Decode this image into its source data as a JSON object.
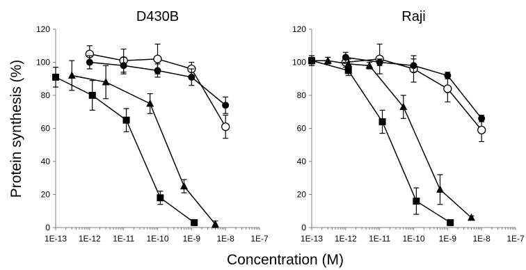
{
  "figure": {
    "ylabel": "Protein synthesis (%)",
    "xlabel": "Concentration (M)"
  },
  "chart_data": [
    {
      "type": "scatter",
      "title": "D430B",
      "xlabel": "Concentration (M)",
      "ylabel": "Protein synthesis (%)",
      "xscale": "log",
      "xlim": [
        1e-13,
        1e-07
      ],
      "ylim": [
        0,
        120
      ],
      "xtick_labels": [
        "1E-13",
        "1E-12",
        "1E-11",
        "1E-10",
        "1E-9",
        "1E-8",
        "1E-7"
      ],
      "ytick_labels": [
        "0",
        "20",
        "40",
        "60",
        "80",
        "100",
        "120"
      ],
      "grid": false,
      "series": [
        {
          "marker": "circle-open",
          "x": [
            1e-12,
            1e-11,
            1e-10,
            1e-09,
            1e-08
          ],
          "y": [
            105,
            101,
            102,
            96,
            61
          ],
          "err": [
            5,
            7,
            9,
            4,
            7
          ]
        },
        {
          "marker": "circle-filled",
          "x": [
            1e-12,
            1e-11,
            1e-10,
            1e-09,
            1e-08
          ],
          "y": [
            100,
            98,
            95,
            91,
            74
          ],
          "err": [
            4,
            5,
            4,
            5,
            5
          ]
        },
        {
          "marker": "triangle",
          "x": [
            3e-13,
            3e-12,
            6e-11,
            6e-10,
            5e-09
          ],
          "y": [
            92,
            88,
            75,
            25,
            2
          ],
          "err": [
            9,
            10,
            6,
            4,
            2
          ]
        },
        {
          "marker": "square",
          "x": [
            1e-13,
            1.2e-12,
            1.2e-11,
            1.2e-10,
            1.2e-09
          ],
          "y": [
            91,
            80,
            65,
            18,
            3
          ],
          "err": [
            6,
            9,
            7,
            4,
            1
          ]
        }
      ]
    },
    {
      "type": "scatter",
      "title": "Raji",
      "xlabel": "Concentration (M)",
      "ylabel": "Protein synthesis (%)",
      "xscale": "log",
      "xlim": [
        1e-13,
        1e-07
      ],
      "ylim": [
        0,
        120
      ],
      "xtick_labels": [
        "1E-13",
        "1E-12",
        "1E-11",
        "1E-10",
        "1E-9",
        "1E-8",
        "1E-7"
      ],
      "ytick_labels": [
        "0",
        "20",
        "40",
        "60",
        "80",
        "100",
        "120"
      ],
      "grid": false,
      "series": [
        {
          "marker": "circle-open",
          "x": [
            1e-12,
            1e-11,
            1e-10,
            1e-09,
            1e-08
          ],
          "y": [
            100,
            102,
            96,
            84,
            59
          ],
          "err": [
            3,
            9,
            8,
            8,
            7
          ]
        },
        {
          "marker": "circle-filled",
          "x": [
            1e-12,
            1e-11,
            1e-10,
            1e-09,
            1e-08
          ],
          "y": [
            103,
            100,
            98,
            92,
            66
          ],
          "err": [
            3,
            2,
            4,
            2,
            2
          ]
        },
        {
          "marker": "triangle",
          "x": [
            1e-13,
            3e-13,
            1.2e-12,
            5e-12,
            5e-11,
            6e-10,
            5e-09
          ],
          "y": [
            101,
            101,
            99,
            98,
            73,
            23,
            6
          ],
          "err": [
            2,
            2,
            3,
            2,
            7,
            9,
            1
          ]
        },
        {
          "marker": "square",
          "x": [
            1e-13,
            1.2e-12,
            1.2e-11,
            1.2e-10,
            1.2e-09
          ],
          "y": [
            101,
            95,
            64,
            16,
            3
          ],
          "err": [
            3,
            3,
            7,
            8,
            1
          ]
        }
      ]
    }
  ]
}
